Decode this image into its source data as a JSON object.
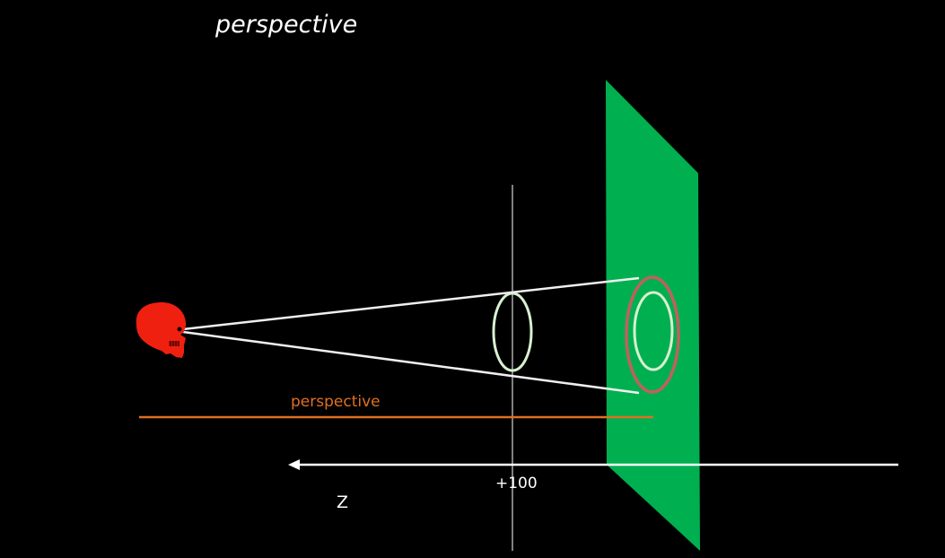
{
  "title": "perspective",
  "perspective_label": "perspective",
  "z_marker_label": "+100",
  "axis_label": "Z",
  "colors": {
    "background": "#000000",
    "eye_skull": "#f02010",
    "projection_plane": "#00b050",
    "perspective_bar": "#e07020",
    "object_ring": "#d8f0d0",
    "projected_outer_ring": "#c06060",
    "lines": "#f0f0f0"
  },
  "icons": {
    "eye": "skull-icon"
  }
}
